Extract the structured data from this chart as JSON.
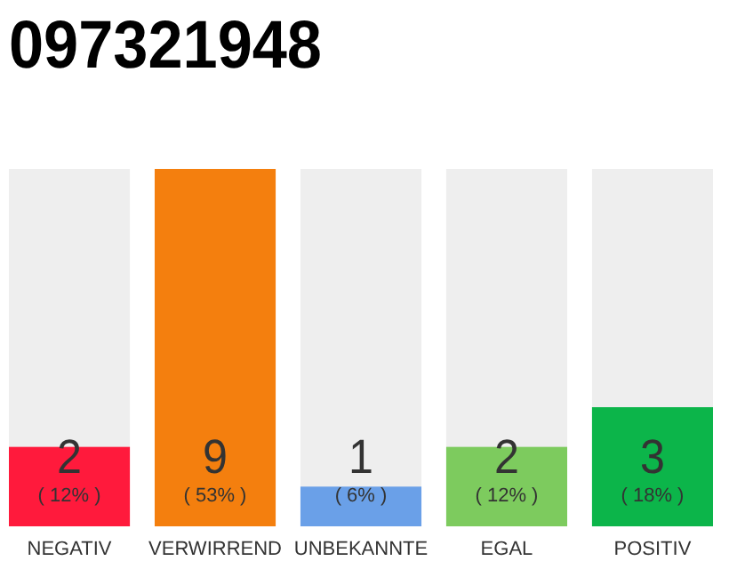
{
  "chart_data": {
    "type": "bar",
    "title": "097321948",
    "categories": [
      "NEGATIV",
      "VERWIRREND",
      "UNBEKANNTE",
      "EGAL",
      "POSITIV"
    ],
    "values": [
      2,
      9,
      1,
      2,
      3
    ],
    "colors": [
      "#ff1a3c",
      "#f47f0e",
      "#6aa0e8",
      "#7dcb5e",
      "#0cb54a"
    ],
    "ylim": [
      0,
      9
    ],
    "data_labels": true,
    "annotations": [
      "( 12% )",
      "( 53% )",
      "( 6% )",
      "( 12% )",
      "( 18% )"
    ],
    "tick_labels": "x"
  }
}
